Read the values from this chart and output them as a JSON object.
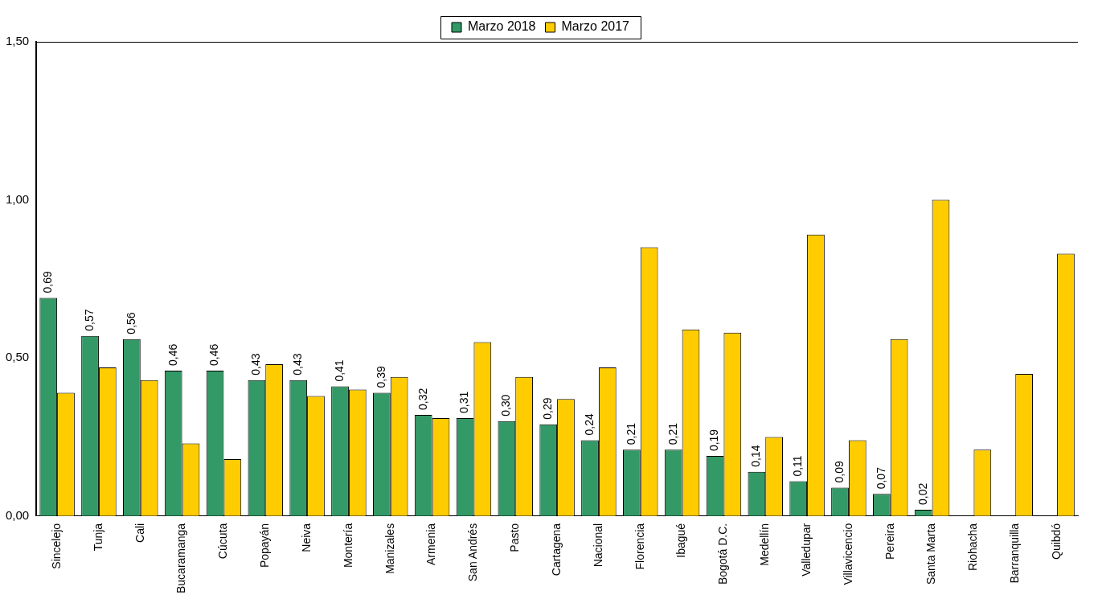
{
  "chart_data": {
    "type": "bar",
    "categories": [
      "Sincelejo",
      "Tunja",
      "Cali",
      "Bucaramanga",
      "Cúcuta",
      "Popayán",
      "Neiva",
      "Montería",
      "Manizales",
      "Armenia",
      "San Andrés",
      "Pasto",
      "Cartagena",
      "Nacional",
      "Florencia",
      "Ibagué",
      "Bogotá D.C.",
      "Medellín",
      "Valledupar",
      "Villavicencio",
      "Pereira",
      "Santa Marta",
      "Riohacha",
      "Barranquilla",
      "Quibdó"
    ],
    "series": [
      {
        "name": "Marzo 2018",
        "color": "#339966",
        "values": [
          0.69,
          0.57,
          0.56,
          0.46,
          0.46,
          0.43,
          0.43,
          0.41,
          0.39,
          0.32,
          0.31,
          0.3,
          0.29,
          0.24,
          0.21,
          0.21,
          0.19,
          0.14,
          0.11,
          0.09,
          0.07,
          0.02,
          0,
          0,
          0
        ],
        "value_labels": [
          "0,69",
          "0,57",
          "0,56",
          "0,46",
          "0,46",
          "0,43",
          "0,43",
          "0,41",
          "0,39",
          "0,32",
          "0,31",
          "0,30",
          "0,29",
          "0,24",
          "0,21",
          "0,21",
          "0,19",
          "0,14",
          "0,11",
          "0,09",
          "0,07",
          "0,02",
          null,
          null,
          null
        ]
      },
      {
        "name": "Marzo 2017",
        "color": "#ffcc00",
        "values": [
          0.39,
          0.47,
          0.43,
          0.23,
          0.18,
          0.48,
          0.38,
          0.4,
          0.44,
          0.31,
          0.55,
          0.44,
          0.37,
          0.47,
          0.85,
          0.59,
          0.58,
          0.25,
          0.89,
          0.24,
          0.56,
          1.0,
          0.21,
          0.45,
          0.83
        ]
      }
    ],
    "ylim": [
      0,
      1.5
    ],
    "yticks": [
      {
        "value": 0,
        "label": "0,00"
      },
      {
        "value": 0.5,
        "label": "0,50"
      },
      {
        "value": 1,
        "label": "1,00"
      },
      {
        "value": 1.5,
        "label": "1,50"
      }
    ],
    "grid": false,
    "legend": "top"
  }
}
